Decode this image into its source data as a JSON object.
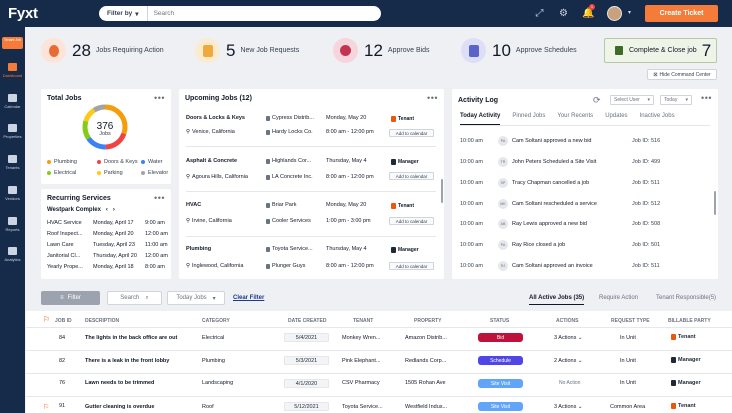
{
  "header": {
    "logo": "Fyxt",
    "filter_label": "Filter by",
    "search_placeholder": "Search",
    "notification_count": "1",
    "create_label": "Create Ticket"
  },
  "sidebar": {
    "tenant_job": "Tenant Job",
    "items": [
      "Dashboard",
      "Calendar",
      "Properties",
      "Tenants",
      "Vendors",
      "Reports",
      "Analytics"
    ]
  },
  "stats": [
    {
      "num": "28",
      "label": "Jobs Requiring Action"
    },
    {
      "num": "5",
      "label": "New Job Requests"
    },
    {
      "num": "12",
      "label": "Approve Bids"
    },
    {
      "num": "10",
      "label": "Approve Schedules"
    }
  ],
  "close_job": {
    "label": "Complete & Close job",
    "num": "7"
  },
  "hide_cmd": "Hide Command Center",
  "total_jobs": {
    "title": "Total Jobs",
    "center_num": "376",
    "center_label": "Jobs",
    "legend": [
      {
        "name": "Plumbing",
        "color": "#f59e0b"
      },
      {
        "name": "Doors & Keys",
        "color": "#ef4444"
      },
      {
        "name": "Water",
        "color": "#3b82f6"
      },
      {
        "name": "Electrical",
        "color": "#84cc16"
      },
      {
        "name": "Parking",
        "color": "#facc15"
      },
      {
        "name": "Elevator",
        "color": "#a3a3a3"
      }
    ]
  },
  "recurring": {
    "title": "Recurring Services",
    "property": "Westpark Complex",
    "rows": [
      {
        "a": "HVAC Service",
        "b": "Monday, April 17",
        "c": "9:00 am"
      },
      {
        "a": "Roof Inspect...",
        "b": "Monday, April 20",
        "c": "12:00 am"
      },
      {
        "a": "Lawn Care",
        "b": "Tuesday, April 23",
        "c": "11:00 am"
      },
      {
        "a": "Janitorial Cl...",
        "b": "Thursday, April 20",
        "c": "12:00 am"
      },
      {
        "a": "Yearly Prope...",
        "b": "Monday, April 18",
        "c": "8:00 am"
      }
    ]
  },
  "upcoming": {
    "title": "Upcoming Jobs (12)",
    "add_label": "Add to calendar",
    "jobs": [
      {
        "title": "Doors & Locks & Keys",
        "loc": "Venice, California",
        "rows": [
          {
            "v": "Cypress Distrib...",
            "d": "Monday, May 20",
            "p": "Tenant"
          },
          {
            "v": "Hardy Locks Co.",
            "d": "8:00 am - 12:00 pm"
          }
        ]
      },
      {
        "title": "Asphalt & Concrete",
        "loc": "Agoura Hills, California",
        "rows": [
          {
            "v": "Highlands Cor...",
            "d": "Thursday, May 4",
            "p": "Manager"
          },
          {
            "v": "LA Concrete Inc.",
            "d": "8:00 am - 12:00 pm"
          }
        ]
      },
      {
        "title": "HVAC",
        "loc": "Irvine, California",
        "rows": [
          {
            "v": "Briar Park",
            "d": "Monday, May 20",
            "p": "Tenant"
          },
          {
            "v": "Cooler Services",
            "d": "1:00 pm - 3:00 pm"
          }
        ]
      },
      {
        "title": "Plumbing",
        "loc": "Inglewood, California",
        "rows": [
          {
            "v": "Toyota Service...",
            "d": "Thursday, May 4",
            "p": "Manager"
          },
          {
            "v": "Plunger Guys",
            "d": "8:00 am - 12:00 pm"
          }
        ]
      }
    ]
  },
  "activity": {
    "title": "Activity Log",
    "select_user": "Select User",
    "today": "Today",
    "tabs": [
      "Today Activity",
      "Pinned Jobs",
      "Your Recents",
      "Updates",
      "Inactive Jobs"
    ],
    "rows": [
      {
        "t": "10:00 am",
        "av": "PA",
        "m": "Cam Soltani approved a new bid",
        "j": "Job ID: 516"
      },
      {
        "t": "10:00 am",
        "av": "TR",
        "m": "John Peters Scheduled a Site Visit",
        "j": "Job ID: 499"
      },
      {
        "t": "10:00 am",
        "av": "SP",
        "m": "Tracy Chapman cancelled a job",
        "j": "Job ID: 511"
      },
      {
        "t": "10:00 am",
        "av": "MK",
        "m": "Cam Soltani rescheduled a service",
        "j": "Job ID: 512"
      },
      {
        "t": "10:00 am",
        "av": "AB",
        "m": "Ray Lewis approved a new bid",
        "j": "Job ID: 508"
      },
      {
        "t": "10:00 am",
        "av": "PA",
        "m": "Ray Rice closed a job",
        "j": "Job ID: 501"
      },
      {
        "t": "10:00 am",
        "av": "RJ",
        "m": "Cam Soltani approved an invoice",
        "j": "Job ID: 511"
      }
    ]
  },
  "toolbar": {
    "filter": "Filter",
    "search": "Search",
    "today_jobs": "Today Jobs",
    "clear": "Clear Filter",
    "tabs": [
      "All Active Jobs (35)",
      "Require Action",
      "Tenant Responsible(5)"
    ]
  },
  "table": {
    "headers": [
      "JOB ID",
      "DESCRIPTION",
      "CATEGORY",
      "DATE CREATED",
      "TENANT",
      "PROPERTY",
      "STATUS",
      "ACTIONS",
      "REQUEST TYPE",
      "BILLABLE PARTY"
    ],
    "rows": [
      {
        "id": "84",
        "desc": "The lights in the back office are out",
        "cat": "Electrical",
        "date": "5/4/2021",
        "tenant": "Monkey Wren...",
        "prop": "Amazon Distrib...",
        "status": "Bid",
        "scolor": "#be123c",
        "act": "3 Actions",
        "req": "In Unit",
        "bill": "Tenant",
        "bcolor": "#ea580c"
      },
      {
        "id": "82",
        "desc": "There is a leak in the front lobby",
        "cat": "Plumbing",
        "date": "5/3/2021",
        "tenant": "Pink Elephant...",
        "prop": "Redlands Corp...",
        "status": "Schedule",
        "scolor": "#4f46e5",
        "act": "2 Actions",
        "req": "In Unit",
        "bill": "Manager",
        "bcolor": "#1f2937"
      },
      {
        "id": "76",
        "desc": "Lawn needs to be trimmed",
        "cat": "Landscaping",
        "date": "4/1/2020",
        "tenant": "CSV Pharmacy",
        "prop": "1505 Rohan Ave",
        "status": "Site Visit",
        "scolor": "#60a5fa",
        "act": "No Action",
        "req": "In Unit",
        "bill": "Manager",
        "bcolor": "#1f2937"
      },
      {
        "id": "91",
        "desc": "Gutter cleaning is overdue",
        "cat": "Roof",
        "date": "5/12/2021",
        "tenant": "Toyota Service...",
        "prop": "Westfield Indus...",
        "status": "Site Visit",
        "scolor": "#60a5fa",
        "act": "3 Actions",
        "req": "Common Area",
        "bill": "Tenant",
        "bcolor": "#ea580c"
      }
    ]
  }
}
